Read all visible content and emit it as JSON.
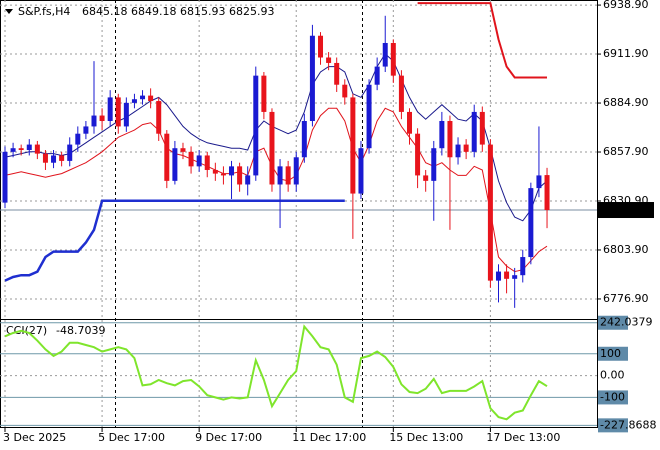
{
  "chart_data": [
    {
      "type": "candlestick",
      "symbol": "S&P.fs,H4",
      "categories": [
        "3 Dec 2025",
        null,
        null,
        null,
        null,
        null,
        null,
        null,
        null,
        null,
        null,
        null,
        "5 Dec 17:00",
        null,
        null,
        null,
        null,
        null,
        null,
        null,
        null,
        null,
        null,
        null,
        "9 Dec 17:00",
        null,
        null,
        null,
        null,
        null,
        null,
        null,
        null,
        null,
        null,
        null,
        "11 Dec 17:00",
        null,
        null,
        null,
        null,
        null,
        null,
        null,
        null,
        null,
        null,
        null,
        "15 Dec 13:00",
        null,
        null,
        null,
        null,
        null,
        null,
        null,
        null,
        null,
        null,
        null,
        "17 Dec 13:00",
        null,
        null,
        null,
        null,
        null,
        null,
        null
      ],
      "open": [
        6830,
        6858,
        6860,
        6859,
        6862,
        6857,
        6852,
        6856,
        6853,
        6862,
        6868,
        6872,
        6878,
        6875,
        6888,
        6872,
        6885,
        6887,
        6889,
        6886,
        6868,
        6842,
        6860,
        6858,
        6850,
        6856,
        6848,
        6846,
        6845,
        6850,
        6840,
        6845,
        6900,
        6880,
        6840,
        6850,
        6840,
        6855,
        6875,
        6922,
        6910,
        6907,
        6895,
        6888,
        6835,
        6860,
        6895,
        6905,
        6918,
        6900,
        6880,
        6868,
        6845,
        6842,
        6860,
        6875,
        6855,
        6862,
        6858,
        6880,
        6862,
        6787,
        6792,
        6788,
        6790,
        6800,
        6838,
        6845.18
      ],
      "high": [
        6861,
        6863,
        6862,
        6865,
        6864,
        6859,
        6859,
        6858,
        6866,
        6872,
        6875,
        6908,
        6882,
        6892,
        6890,
        6888,
        6890,
        6892,
        6893,
        6888,
        6870,
        6864,
        6863,
        6861,
        6859,
        6858,
        6852,
        6850,
        6853,
        6852,
        6850,
        6905,
        6902,
        6882,
        6854,
        6853,
        6858,
        6879,
        6928,
        6924,
        6913,
        6910,
        6898,
        6890,
        6864,
        6898,
        6910,
        6933,
        6920,
        6903,
        6882,
        6871,
        6848,
        6864,
        6880,
        6878,
        6866,
        6865,
        6884,
        6883,
        6865,
        6796,
        6796,
        6794,
        6804,
        6841,
        6872,
        6849.18
      ],
      "low": [
        6827,
        6855,
        6856,
        6856,
        6854,
        6848,
        6849,
        6850,
        6850,
        6858,
        6865,
        6868,
        6870,
        6872,
        6868,
        6869,
        6882,
        6884,
        6882,
        6864,
        6838,
        6840,
        6854,
        6846,
        6847,
        6844,
        6842,
        6840,
        6832,
        6836,
        6834,
        6842,
        6876,
        6836,
        6816,
        6836,
        6836,
        6852,
        6872,
        6906,
        6903,
        6891,
        6884,
        6810,
        6832,
        6857,
        6892,
        6902,
        6896,
        6876,
        6862,
        6838,
        6836,
        6820,
        6856,
        6815,
        6851,
        6854,
        6855,
        6858,
        6783,
        6775,
        6780,
        6772,
        6786,
        6796,
        6833,
        6815.93
      ],
      "close": [
        6858,
        6860,
        6859,
        6862,
        6857,
        6852,
        6856,
        6853,
        6862,
        6868,
        6872,
        6878,
        6875,
        6888,
        6872,
        6885,
        6887,
        6889,
        6886,
        6868,
        6842,
        6860,
        6858,
        6850,
        6856,
        6848,
        6846,
        6845,
        6850,
        6840,
        6845,
        6900,
        6880,
        6840,
        6850,
        6840,
        6855,
        6875,
        6922,
        6910,
        6907,
        6895,
        6888,
        6835,
        6860,
        6895,
        6905,
        6918,
        6900,
        6880,
        6868,
        6845,
        6842,
        6860,
        6875,
        6855,
        6862,
        6858,
        6880,
        6862,
        6787,
        6792,
        6788,
        6790,
        6800,
        6838,
        6845,
        6825.93
      ],
      "up_color": "#1a1ad2",
      "down_color": "#e8141c",
      "lines": [
        {
          "color": "#1a1a8c",
          "width": 1,
          "values": [
            6855,
            6856,
            6857,
            6858,
            6858,
            6857,
            6857,
            6856,
            6857,
            6860,
            6863,
            6866,
            6869,
            6872,
            6875,
            6877,
            6880,
            6883,
            6886,
            6888,
            6884,
            6878,
            6872,
            6868,
            6865,
            6863,
            6862,
            6861,
            6860,
            6860,
            6859,
            6870,
            6875,
            6872,
            6870,
            6868,
            6870,
            6880,
            6895,
            6902,
            6905,
            6905,
            6902,
            6890,
            6888,
            6895,
            6905,
            6912,
            6908,
            6898,
            6888,
            6880,
            6876,
            6880,
            6884,
            6880,
            6876,
            6875,
            6879,
            6875,
            6860,
            6842,
            6830,
            6822,
            6820,
            6826,
            6838,
            6842
          ]
        },
        {
          "color": "#e0141c",
          "width": 1,
          "values": [
            6845,
            6846,
            6847,
            6846,
            6845,
            6844,
            6845,
            6846,
            6848,
            6850,
            6852,
            6855,
            6858,
            6862,
            6866,
            6868,
            6870,
            6873,
            6874,
            6870,
            6860,
            6857,
            6856,
            6854,
            6852,
            6850,
            6848,
            6846,
            6846,
            6847,
            6845,
            6858,
            6860,
            6850,
            6843,
            6842,
            6845,
            6855,
            6870,
            6878,
            6882,
            6882,
            6875,
            6860,
            6852,
            6862,
            6875,
            6882,
            6880,
            6872,
            6866,
            6860,
            6852,
            6850,
            6852,
            6848,
            6845,
            6845,
            6850,
            6848,
            6825,
            6800,
            6795,
            6792,
            6793,
            6798,
            6803,
            6806
          ]
        },
        {
          "color": "#1f2fd0",
          "width": 2.5,
          "values": [
            6787,
            6789,
            6790,
            6790,
            6792,
            6800,
            6803,
            6803,
            6803,
            6803,
            6808,
            6815,
            6831,
            6831,
            6831,
            6831,
            6831,
            6831,
            6831,
            6831,
            6831,
            6831,
            6831,
            6831,
            6831,
            6831,
            6831,
            6831,
            6831,
            6831,
            6831,
            6831,
            6831,
            6831,
            6831,
            6831,
            6831,
            6831,
            6831,
            6831,
            6831,
            6831,
            6831,
            null,
            null,
            null,
            null,
            null,
            null,
            null,
            null,
            null,
            null,
            null,
            null,
            null,
            null,
            null,
            null,
            null,
            null,
            null,
            null,
            null,
            null,
            null,
            null,
            null
          ]
        },
        {
          "color": "#e0141c",
          "width": 2,
          "values": [
            null,
            null,
            null,
            null,
            null,
            null,
            null,
            null,
            null,
            null,
            null,
            null,
            null,
            null,
            null,
            null,
            null,
            null,
            null,
            null,
            null,
            null,
            null,
            null,
            null,
            null,
            null,
            null,
            null,
            null,
            null,
            null,
            null,
            null,
            null,
            null,
            null,
            null,
            null,
            null,
            null,
            null,
            null,
            null,
            null,
            null,
            null,
            null,
            null,
            null,
            null,
            6940,
            6940,
            6940,
            6940,
            6940,
            6940,
            6940,
            6940,
            6940,
            6940,
            6920,
            6905,
            6899,
            6899,
            6899,
            6899,
            6899
          ]
        }
      ],
      "ylim": [
        6766.4,
        6941.7
      ],
      "yticks": [
        {
          "value": 6938.9,
          "label": "6938.90"
        },
        {
          "value": 6911.9,
          "label": "6911.90"
        },
        {
          "value": 6884.9,
          "label": "6884.90"
        },
        {
          "value": 6857.9,
          "label": "6857.90"
        },
        {
          "value": 6830.9,
          "label": "6830.90"
        },
        {
          "value": 6803.9,
          "label": "6803.90"
        },
        {
          "value": 6776.9,
          "label": "6776.90"
        }
      ],
      "grid": true
    },
    {
      "type": "line",
      "title": "CCI(27)",
      "color": "#7fe52c",
      "values": [
        180,
        195,
        205,
        195,
        160,
        120,
        90,
        110,
        150,
        150,
        140,
        130,
        110,
        120,
        130,
        120,
        80,
        -45,
        -40,
        -20,
        -35,
        -45,
        -25,
        -20,
        -50,
        -90,
        -100,
        -110,
        -100,
        -105,
        -100,
        70,
        -20,
        -140,
        -80,
        -20,
        20,
        225,
        180,
        130,
        120,
        50,
        -100,
        -120,
        80,
        90,
        110,
        85,
        40,
        -40,
        -75,
        -80,
        -60,
        -15,
        -80,
        -70,
        -70,
        -70,
        -50,
        -25,
        -150,
        -190,
        -200,
        -170,
        -160,
        -90,
        -25,
        -48.7039
      ],
      "ylim": [
        -240,
        250
      ],
      "yticks": [
        242.0379,
        100,
        {
          "value": 0,
          "label": "0.00"
        },
        -100,
        -227.8688
      ]
    }
  ]
}
